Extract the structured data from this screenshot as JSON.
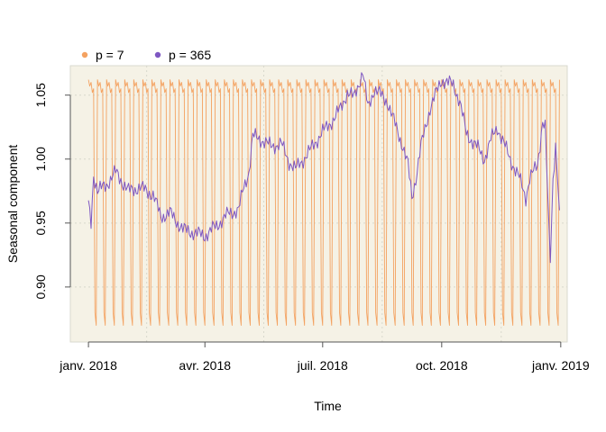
{
  "chart_data": {
    "type": "line",
    "title": "",
    "xlabel": "Time",
    "ylabel": "Seasonal component",
    "x_range": [
      "2017-12-18",
      "2019-01-06"
    ],
    "ylim": [
      0.857,
      1.073
    ],
    "grid": true,
    "legend_position": "top-left",
    "background_color": "#f5f2e6",
    "x_ticks": [
      {
        "date": "2018-01-01",
        "label": "janv. 2018"
      },
      {
        "date": "2018-04-01",
        "label": "avr. 2018"
      },
      {
        "date": "2018-07-01",
        "label": "juil. 2018"
      },
      {
        "date": "2018-10-01",
        "label": "oct. 2018"
      },
      {
        "date": "2019-01-01",
        "label": "janv. 2019"
      }
    ],
    "y_ticks": [
      {
        "value": 0.9,
        "label": "0.90"
      },
      {
        "value": 0.95,
        "label": "0.95"
      },
      {
        "value": 1.0,
        "label": "1.00"
      },
      {
        "value": 1.05,
        "label": "1.05"
      }
    ],
    "series": [
      {
        "name": "p = 7",
        "color": "#f4a261",
        "period_days": 7,
        "start_date": "2018-01-01",
        "end_date": "2018-12-31",
        "weekly_pattern": [
          1.062,
          1.057,
          1.06,
          1.052,
          1.055,
          0.88,
          0.87
        ]
      },
      {
        "name": "p = 365",
        "color": "#7e57c2",
        "start_date": "2018-01-01",
        "end_date": "2018-12-31",
        "points": [
          [
            "2018-01-01",
            0.965
          ],
          [
            "2018-01-03",
            0.95
          ],
          [
            "2018-01-05",
            0.988
          ],
          [
            "2018-01-08",
            0.975
          ],
          [
            "2018-01-15",
            0.98
          ],
          [
            "2018-01-22",
            0.99
          ],
          [
            "2018-02-01",
            0.975
          ],
          [
            "2018-02-10",
            0.978
          ],
          [
            "2018-02-20",
            0.972
          ],
          [
            "2018-02-26",
            0.955
          ],
          [
            "2018-03-05",
            0.958
          ],
          [
            "2018-03-15",
            0.945
          ],
          [
            "2018-03-25",
            0.942
          ],
          [
            "2018-04-01",
            0.94
          ],
          [
            "2018-04-10",
            0.948
          ],
          [
            "2018-04-20",
            0.958
          ],
          [
            "2018-04-27",
            0.96
          ],
          [
            "2018-05-01",
            0.978
          ],
          [
            "2018-05-05",
            0.99
          ],
          [
            "2018-05-08",
            1.018
          ],
          [
            "2018-05-15",
            1.015
          ],
          [
            "2018-05-22",
            1.01
          ],
          [
            "2018-05-30",
            1.012
          ],
          [
            "2018-06-05",
            0.998
          ],
          [
            "2018-06-10",
            0.992
          ],
          [
            "2018-06-20",
            1.005
          ],
          [
            "2018-06-30",
            1.02
          ],
          [
            "2018-07-10",
            1.032
          ],
          [
            "2018-07-15",
            1.04
          ],
          [
            "2018-07-20",
            1.052
          ],
          [
            "2018-07-25",
            1.048
          ],
          [
            "2018-08-01",
            1.068
          ],
          [
            "2018-08-05",
            1.04
          ],
          [
            "2018-08-10",
            1.055
          ],
          [
            "2018-08-20",
            1.045
          ],
          [
            "2018-08-25",
            1.03
          ],
          [
            "2018-09-01",
            1.01
          ],
          [
            "2018-09-05",
            0.995
          ],
          [
            "2018-09-08",
            0.97
          ],
          [
            "2018-09-11",
            0.985
          ],
          [
            "2018-09-15",
            1.01
          ],
          [
            "2018-09-22",
            1.04
          ],
          [
            "2018-10-01",
            1.062
          ],
          [
            "2018-10-05",
            1.06
          ],
          [
            "2018-10-10",
            1.058
          ],
          [
            "2018-10-15",
            1.045
          ],
          [
            "2018-10-20",
            1.02
          ],
          [
            "2018-10-28",
            1.01
          ],
          [
            "2018-11-03",
            1.0
          ],
          [
            "2018-11-08",
            1.015
          ],
          [
            "2018-11-13",
            1.025
          ],
          [
            "2018-11-18",
            1.012
          ],
          [
            "2018-11-23",
            1.0
          ],
          [
            "2018-11-30",
            0.985
          ],
          [
            "2018-12-05",
            0.97
          ],
          [
            "2018-12-08",
            0.985
          ],
          [
            "2018-12-14",
            0.995
          ],
          [
            "2018-12-18",
            1.03
          ],
          [
            "2018-12-20",
            1.025
          ],
          [
            "2018-12-23",
            0.94
          ],
          [
            "2018-12-24",
            0.922
          ],
          [
            "2018-12-26",
            0.985
          ],
          [
            "2018-12-28",
            1.012
          ],
          [
            "2018-12-31",
            0.96
          ]
        ]
      }
    ]
  }
}
